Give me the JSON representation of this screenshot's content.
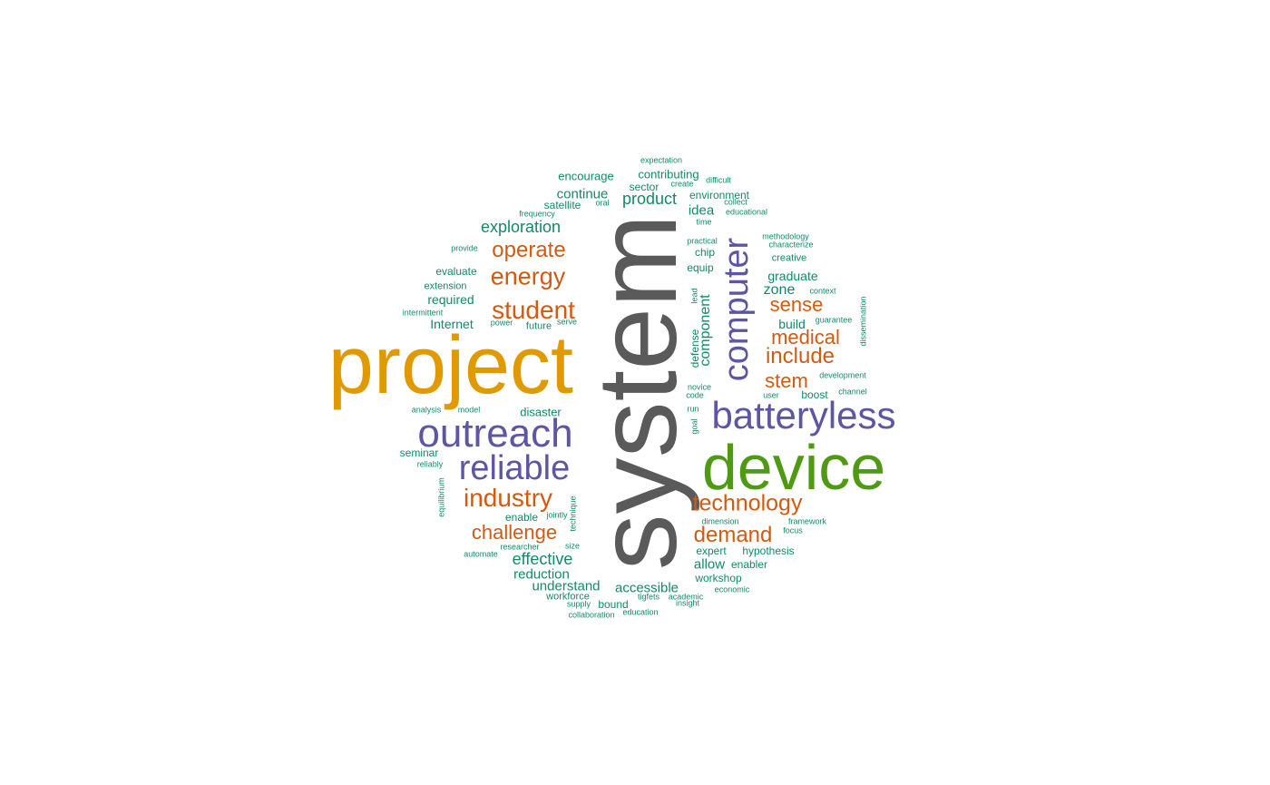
{
  "colors": {
    "tier1": "#5a5a5a",
    "tier2": "#e09a00",
    "tier3": "#4e9a12",
    "tier4": "#5c56a4",
    "tier5": "#d15b11",
    "tier6": "#12896b"
  },
  "words": [
    {
      "text": "system",
      "tier": 1
    },
    {
      "text": "project",
      "tier": 2
    },
    {
      "text": "device",
      "tier": 3
    },
    {
      "text": "batteryless",
      "tier": 4
    },
    {
      "text": "outreach",
      "tier": 4
    },
    {
      "text": "computer",
      "tier": 4
    },
    {
      "text": "reliable",
      "tier": 4
    },
    {
      "text": "industry",
      "tier": 5
    },
    {
      "text": "technology",
      "tier": 5
    },
    {
      "text": "student",
      "tier": 5
    },
    {
      "text": "demand",
      "tier": 5
    },
    {
      "text": "energy",
      "tier": 5
    },
    {
      "text": "include",
      "tier": 5
    },
    {
      "text": "operate",
      "tier": 5
    },
    {
      "text": "challenge",
      "tier": 5
    },
    {
      "text": "medical",
      "tier": 5
    },
    {
      "text": "stem",
      "tier": 5
    },
    {
      "text": "sense",
      "tier": 5
    },
    {
      "text": "exploration",
      "tier": 6
    },
    {
      "text": "effective",
      "tier": 6
    },
    {
      "text": "product",
      "tier": 6
    },
    {
      "text": "component",
      "tier": 6
    },
    {
      "text": "accessible",
      "tier": 6
    },
    {
      "text": "understand",
      "tier": 6
    },
    {
      "text": "zone",
      "tier": 6
    },
    {
      "text": "continue",
      "tier": 6
    },
    {
      "text": "reduction",
      "tier": 6
    },
    {
      "text": "allow",
      "tier": 6
    },
    {
      "text": "graduate",
      "tier": 6
    },
    {
      "text": "required",
      "tier": 6
    },
    {
      "text": "Internet",
      "tier": 6
    },
    {
      "text": "idea",
      "tier": 6
    },
    {
      "text": "build",
      "tier": 6
    },
    {
      "text": "encourage",
      "tier": 6
    },
    {
      "text": "contributing",
      "tier": 6
    },
    {
      "text": "disaster",
      "tier": 6
    },
    {
      "text": "workshop",
      "tier": 6
    },
    {
      "text": "satellite",
      "tier": 6
    },
    {
      "text": "environment",
      "tier": 6
    },
    {
      "text": "seminar",
      "tier": 6
    },
    {
      "text": "expert",
      "tier": 6
    },
    {
      "text": "hypothesis",
      "tier": 6
    },
    {
      "text": "bound",
      "tier": 6
    },
    {
      "text": "boost",
      "tier": 6
    },
    {
      "text": "enable",
      "tier": 6
    },
    {
      "text": "equip",
      "tier": 6
    },
    {
      "text": "defense",
      "tier": 6
    },
    {
      "text": "chip",
      "tier": 6
    },
    {
      "text": "evaluate",
      "tier": 6
    },
    {
      "text": "creative",
      "tier": 6
    },
    {
      "text": "extension",
      "tier": 6
    },
    {
      "text": "enabler",
      "tier": 6
    },
    {
      "text": "sector",
      "tier": 6
    },
    {
      "text": "future",
      "tier": 6
    },
    {
      "text": "workforce",
      "tier": 6
    },
    {
      "text": "expectation",
      "tier": 6
    },
    {
      "text": "create",
      "tier": 6
    },
    {
      "text": "difficult",
      "tier": 6
    },
    {
      "text": "collect",
      "tier": 6
    },
    {
      "text": "oral",
      "tier": 6
    },
    {
      "text": "frequency",
      "tier": 6
    },
    {
      "text": "educational",
      "tier": 6
    },
    {
      "text": "time",
      "tier": 6
    },
    {
      "text": "provide",
      "tier": 6
    },
    {
      "text": "methodology",
      "tier": 6
    },
    {
      "text": "practical",
      "tier": 6
    },
    {
      "text": "characterize",
      "tier": 6
    },
    {
      "text": "lead",
      "tier": 6
    },
    {
      "text": "context",
      "tier": 6
    },
    {
      "text": "intermittent",
      "tier": 6
    },
    {
      "text": "power",
      "tier": 6
    },
    {
      "text": "serve",
      "tier": 6
    },
    {
      "text": "guarantee",
      "tier": 6
    },
    {
      "text": "dissemination",
      "tier": 6
    },
    {
      "text": "development",
      "tier": 6
    },
    {
      "text": "novice",
      "tier": 6
    },
    {
      "text": "code",
      "tier": 6
    },
    {
      "text": "user",
      "tier": 6
    },
    {
      "text": "channel",
      "tier": 6
    },
    {
      "text": "analysis",
      "tier": 6
    },
    {
      "text": "model",
      "tier": 6
    },
    {
      "text": "run",
      "tier": 6
    },
    {
      "text": "goal",
      "tier": 6
    },
    {
      "text": "reliably",
      "tier": 6
    },
    {
      "text": "equilibrium",
      "tier": 6
    },
    {
      "text": "technique",
      "tier": 6
    },
    {
      "text": "jointly",
      "tier": 6
    },
    {
      "text": "dimension",
      "tier": 6
    },
    {
      "text": "framework",
      "tier": 6
    },
    {
      "text": "focus",
      "tier": 6
    },
    {
      "text": "researcher",
      "tier": 6
    },
    {
      "text": "size",
      "tier": 6
    },
    {
      "text": "automate",
      "tier": 6
    },
    {
      "text": "academic",
      "tier": 6
    },
    {
      "text": "tigfets",
      "tier": 6
    },
    {
      "text": "insight",
      "tier": 6
    },
    {
      "text": "economic",
      "tier": 6
    },
    {
      "text": "supply",
      "tier": 6
    },
    {
      "text": "collaboration",
      "tier": 6
    },
    {
      "text": "education",
      "tier": 6
    }
  ]
}
